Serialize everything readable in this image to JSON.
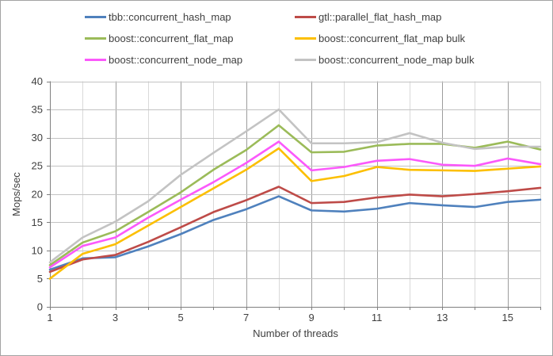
{
  "window": {
    "background": "#ffffff",
    "border_color": "#a3a3a3"
  },
  "chart_data": {
    "type": "line",
    "title": "",
    "xlabel": "Number of threads",
    "ylabel": "Mops/sec",
    "xlim": [
      1,
      16
    ],
    "ylim": [
      0,
      40
    ],
    "x": [
      1,
      2,
      3,
      4,
      5,
      6,
      7,
      8,
      9,
      10,
      11,
      12,
      13,
      14,
      15,
      16
    ],
    "x_major_ticks": [
      1,
      3,
      5,
      7,
      9,
      11,
      13,
      15
    ],
    "y_ticks": [
      0,
      5,
      10,
      15,
      20,
      25,
      30,
      35,
      40
    ],
    "grid": true,
    "legend_position": "top",
    "series": [
      {
        "name": "tbb::concurrent_hash_map",
        "color": "#4f81bd",
        "values": [
          6.6,
          8.6,
          8.8,
          10.7,
          12.9,
          15.4,
          17.3,
          19.6,
          17.1,
          16.9,
          17.4,
          18.4,
          18.0,
          17.7,
          18.6,
          19.0
        ]
      },
      {
        "name": "gtl::parallel_flat_hash_map",
        "color": "#be4b48",
        "values": [
          6.2,
          8.4,
          9.2,
          11.5,
          14.1,
          16.8,
          18.9,
          21.3,
          18.4,
          18.6,
          19.4,
          19.9,
          19.6,
          20.0,
          20.5,
          21.1
        ]
      },
      {
        "name": "boost::concurrent_flat_map",
        "color": "#9bbb59",
        "values": [
          7.4,
          11.4,
          13.4,
          16.8,
          20.3,
          24.3,
          27.8,
          32.2,
          27.4,
          27.5,
          28.6,
          28.9,
          28.9,
          28.2,
          29.3,
          27.9
        ]
      },
      {
        "name": "boost::concurrent_flat_map bulk",
        "color": "#fcbf00",
        "values": [
          5.0,
          9.4,
          11.1,
          14.4,
          17.7,
          21.0,
          24.3,
          28.1,
          22.3,
          23.2,
          24.8,
          24.3,
          24.2,
          24.1,
          24.5,
          24.9
        ]
      },
      {
        "name": "boost::concurrent_node_map",
        "color": "#fb59fb",
        "values": [
          7.0,
          10.8,
          12.3,
          15.8,
          19.0,
          22.1,
          25.5,
          29.3,
          24.2,
          24.8,
          25.9,
          26.2,
          25.2,
          25.0,
          26.3,
          25.3
        ]
      },
      {
        "name": "boost::concurrent_node_map bulk",
        "color": "#c3c3c3",
        "values": [
          7.9,
          12.3,
          15.1,
          18.7,
          23.4,
          27.3,
          31.1,
          35.0,
          29.0,
          29.0,
          29.2,
          30.8,
          29.1,
          28.0,
          28.4,
          28.4
        ]
      }
    ],
    "style": {
      "axis_color": "#7f7f7f",
      "h_grid_color": "#c3c3c3",
      "v_grid_major_color": "#9c9c9c",
      "v_grid_minor_color": "#d9d9d9",
      "tick_label_color": "#3f3f3f",
      "line_width": 2.6
    }
  }
}
